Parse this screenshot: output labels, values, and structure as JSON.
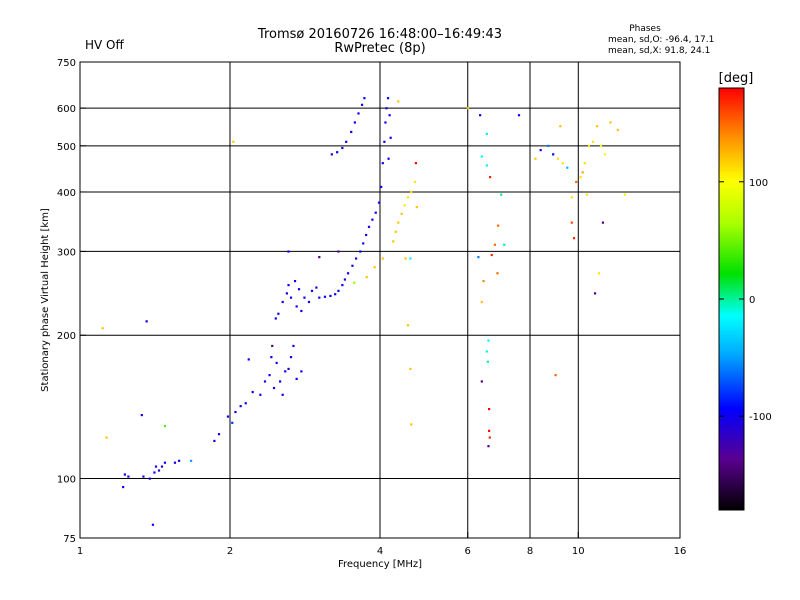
{
  "header": {
    "status": "HV Off",
    "status_color": "#cc2222",
    "title_line1": "Tromsø 20160726 16:48:00–16:49:43",
    "title_line2": "RwPretec (8p)"
  },
  "phases": {
    "heading": "Phases",
    "line_o": "mean, sd,O: -96.4, 17.1",
    "line_x": "mean, sd,X:  91.8, 24.1"
  },
  "colorbar": {
    "unit": "[deg]",
    "ticks": [
      "100",
      "0",
      "-100"
    ],
    "tick_values": [
      100,
      0,
      -100
    ],
    "range": [
      -180,
      180
    ]
  },
  "chart_data": {
    "type": "scatter",
    "xlabel": "Frequency [MHz]",
    "ylabel": "Stationary phase Virtual Height [km]",
    "x_scale": "log",
    "y_scale": "log",
    "xlim": [
      1,
      16
    ],
    "ylim": [
      75,
      750
    ],
    "grid": true,
    "x_ticks": [
      1,
      2,
      4,
      6,
      8,
      10,
      16
    ],
    "x_tick_labels": [
      "1",
      "2",
      "4",
      "6",
      "8",
      "10",
      "16"
    ],
    "x_grid": [
      2,
      4,
      6,
      8,
      10
    ],
    "y_ticks": [
      75,
      100,
      200,
      300,
      400,
      500,
      600,
      750
    ],
    "y_tick_labels": [
      "75",
      "100",
      "200",
      "300",
      "400",
      "500",
      "600",
      "750"
    ],
    "y_grid": [
      100,
      200,
      300,
      400,
      500,
      600
    ],
    "color_by": "phase [deg]",
    "points": [
      [
        1.22,
        96,
        -100
      ],
      [
        1.23,
        102,
        -100
      ],
      [
        1.25,
        101,
        -100
      ],
      [
        1.34,
        101,
        -110
      ],
      [
        1.38,
        100,
        -100
      ],
      [
        1.41,
        103,
        -100
      ],
      [
        1.42,
        106,
        -100
      ],
      [
        1.44,
        104,
        -110
      ],
      [
        1.46,
        106,
        -100
      ],
      [
        1.48,
        108,
        -100
      ],
      [
        1.55,
        108,
        -100
      ],
      [
        1.58,
        109,
        -100
      ],
      [
        1.67,
        109,
        -50
      ],
      [
        1.4,
        80,
        -100
      ],
      [
        1.36,
        214,
        -100
      ],
      [
        1.33,
        136,
        -100
      ],
      [
        1.13,
        122,
        120
      ],
      [
        1.11,
        207,
        120
      ],
      [
        1.48,
        129,
        40
      ],
      [
        1.86,
        120,
        -100
      ],
      [
        1.9,
        124,
        -100
      ],
      [
        1.98,
        135,
        -100
      ],
      [
        2.02,
        131,
        -80
      ],
      [
        2.05,
        138,
        -100
      ],
      [
        2.1,
        142,
        -100
      ],
      [
        2.15,
        144,
        -100
      ],
      [
        2.18,
        178,
        -100
      ],
      [
        2.22,
        152,
        -100
      ],
      [
        2.3,
        150,
        -100
      ],
      [
        2.35,
        160,
        -110
      ],
      [
        2.4,
        165,
        -100
      ],
      [
        2.42,
        180,
        -100
      ],
      [
        2.45,
        155,
        -100
      ],
      [
        2.48,
        175,
        -100
      ],
      [
        2.52,
        160,
        -100
      ],
      [
        2.55,
        150,
        -100
      ],
      [
        2.58,
        168,
        -100
      ],
      [
        2.62,
        170,
        -110
      ],
      [
        2.65,
        180,
        -100
      ],
      [
        2.68,
        190,
        -100
      ],
      [
        2.72,
        162,
        -100
      ],
      [
        2.78,
        168,
        -100
      ],
      [
        2.43,
        190,
        -140
      ],
      [
        2.5,
        222,
        -100
      ],
      [
        2.55,
        235,
        -100
      ],
      [
        2.6,
        245,
        -100
      ],
      [
        2.62,
        255,
        -100
      ],
      [
        2.65,
        240,
        -100
      ],
      [
        2.7,
        260,
        -100
      ],
      [
        2.72,
        230,
        -100
      ],
      [
        2.75,
        250,
        -100
      ],
      [
        2.78,
        225,
        -100
      ],
      [
        2.82,
        240,
        -100
      ],
      [
        2.88,
        235,
        -100
      ],
      [
        2.92,
        248,
        -100
      ],
      [
        2.98,
        252,
        -100
      ],
      [
        2.62,
        300,
        -100
      ],
      [
        2.47,
        217,
        -100
      ],
      [
        3.02,
        240,
        -100
      ],
      [
        3.1,
        241,
        -100
      ],
      [
        3.18,
        242,
        -100
      ],
      [
        3.25,
        244,
        -100
      ],
      [
        3.3,
        248,
        -100
      ],
      [
        3.36,
        255,
        -100
      ],
      [
        3.4,
        262,
        -100
      ],
      [
        3.45,
        270,
        -100
      ],
      [
        3.52,
        280,
        -100
      ],
      [
        3.58,
        290,
        -100
      ],
      [
        3.65,
        300,
        -100
      ],
      [
        3.7,
        312,
        -100
      ],
      [
        3.75,
        325,
        -100
      ],
      [
        3.8,
        338,
        -100
      ],
      [
        3.86,
        350,
        -100
      ],
      [
        3.92,
        362,
        -100
      ],
      [
        3.98,
        380,
        -100
      ],
      [
        4.02,
        410,
        -100
      ],
      [
        4.05,
        460,
        -100
      ],
      [
        4.08,
        510,
        -100
      ],
      [
        4.1,
        560,
        -100
      ],
      [
        4.12,
        600,
        -100
      ],
      [
        4.15,
        630,
        -100
      ],
      [
        4.18,
        580,
        -100
      ],
      [
        4.2,
        520,
        -100
      ],
      [
        4.16,
        470,
        -100
      ],
      [
        3.2,
        480,
        -100
      ],
      [
        3.28,
        485,
        -100
      ],
      [
        3.36,
        495,
        -100
      ],
      [
        3.42,
        510,
        -100
      ],
      [
        3.5,
        535,
        -100
      ],
      [
        3.56,
        560,
        -100
      ],
      [
        3.62,
        585,
        -100
      ],
      [
        3.68,
        610,
        -100
      ],
      [
        3.72,
        630,
        -100
      ],
      [
        3.3,
        300,
        -140
      ],
      [
        3.02,
        292,
        -140
      ],
      [
        3.55,
        258,
        60
      ],
      [
        3.76,
        265,
        120
      ],
      [
        3.9,
        278,
        120
      ],
      [
        4.05,
        290,
        120
      ],
      [
        4.25,
        315,
        120
      ],
      [
        4.3,
        330,
        120
      ],
      [
        4.35,
        345,
        120
      ],
      [
        4.42,
        360,
        120
      ],
      [
        4.48,
        375,
        110
      ],
      [
        4.55,
        390,
        110
      ],
      [
        4.62,
        400,
        110
      ],
      [
        4.7,
        420,
        110
      ],
      [
        4.74,
        372,
        120
      ],
      [
        4.5,
        290,
        120
      ],
      [
        4.55,
        210,
        120
      ],
      [
        4.6,
        170,
        120
      ],
      [
        4.62,
        130,
        120
      ],
      [
        4.72,
        460,
        180
      ],
      [
        4.6,
        290,
        -20
      ],
      [
        2.03,
        510,
        120
      ],
      [
        4.35,
        620,
        120
      ],
      [
        6.35,
        580,
        -100
      ],
      [
        6.55,
        530,
        -20
      ],
      [
        6.4,
        475,
        -20
      ],
      [
        6.55,
        455,
        -20
      ],
      [
        6.3,
        292,
        -60
      ],
      [
        6.45,
        260,
        140
      ],
      [
        6.4,
        235,
        120
      ],
      [
        6.55,
        185,
        -20
      ],
      [
        6.6,
        195,
        -20
      ],
      [
        6.58,
        176,
        0
      ],
      [
        6.4,
        160,
        -140
      ],
      [
        6.62,
        140,
        180
      ],
      [
        6.62,
        126,
        180
      ],
      [
        6.64,
        122,
        170
      ],
      [
        6.6,
        117,
        -140
      ],
      [
        6.65,
        430,
        170
      ],
      [
        6.7,
        295,
        170
      ],
      [
        6.8,
        310,
        150
      ],
      [
        6.9,
        340,
        150
      ],
      [
        6.88,
        270,
        150
      ],
      [
        7.0,
        395,
        0
      ],
      [
        7.1,
        310,
        0
      ],
      [
        7.6,
        580,
        -100
      ],
      [
        8.4,
        490,
        -100
      ],
      [
        8.7,
        500,
        -60
      ],
      [
        8.9,
        480,
        -100
      ],
      [
        9.1,
        470,
        110
      ],
      [
        9.3,
        460,
        110
      ],
      [
        9.5,
        450,
        -40
      ],
      [
        9.7,
        390,
        110
      ],
      [
        9.9,
        420,
        150
      ],
      [
        10.1,
        430,
        110
      ],
      [
        10.3,
        460,
        110
      ],
      [
        10.5,
        500,
        110
      ],
      [
        10.7,
        510,
        110
      ],
      [
        10.9,
        550,
        120
      ],
      [
        11.1,
        500,
        100
      ],
      [
        11.3,
        480,
        100
      ],
      [
        11.6,
        560,
        120
      ],
      [
        12.0,
        540,
        120
      ],
      [
        12.4,
        395,
        90
      ],
      [
        9.8,
        320,
        170
      ],
      [
        9.7,
        345,
        160
      ],
      [
        9.2,
        550,
        120
      ],
      [
        9.0,
        165,
        150
      ],
      [
        11.0,
        270,
        110
      ],
      [
        10.8,
        245,
        -140
      ],
      [
        11.2,
        345,
        -140
      ],
      [
        10.4,
        395,
        110
      ],
      [
        10.2,
        440,
        130
      ],
      [
        6.0,
        600,
        120
      ],
      [
        8.2,
        470,
        120
      ]
    ]
  }
}
